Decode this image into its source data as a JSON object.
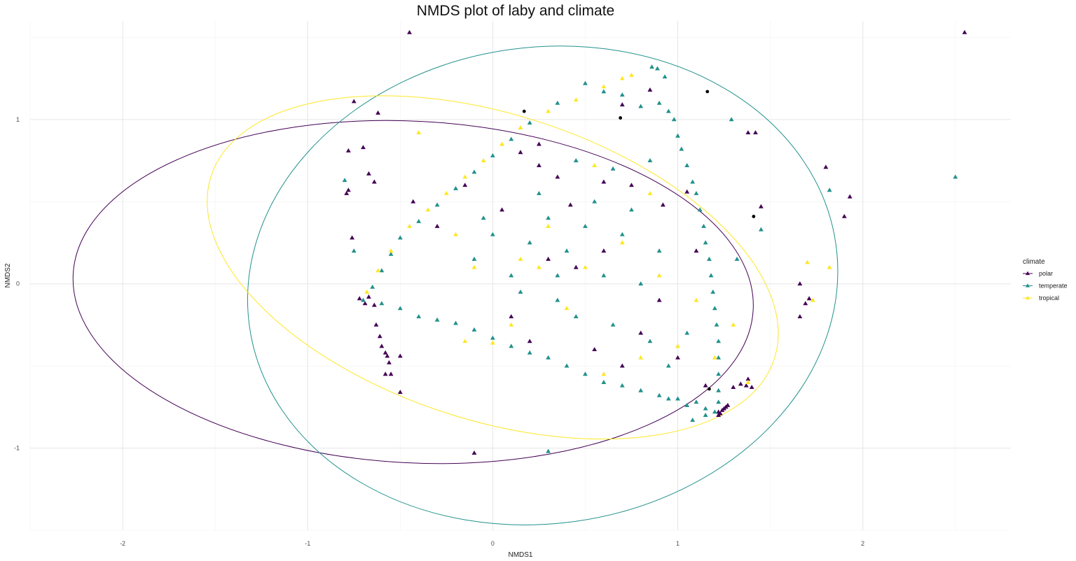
{
  "chart_data": {
    "type": "scatter",
    "title": "NMDS plot of laby and climate",
    "xlabel": "NMDS1",
    "ylabel": "NMDS2",
    "xlim": [
      -2.5,
      2.8
    ],
    "ylim": [
      -1.5,
      1.6
    ],
    "xticks": [
      "-2",
      "-1",
      "0",
      "1",
      "2"
    ],
    "yticks": [
      "-1",
      "0",
      "1"
    ],
    "xtick_values": [
      -2,
      -1,
      0,
      1,
      2
    ],
    "ytick_values": [
      -1,
      0,
      1
    ],
    "grid": true,
    "legend": {
      "title": "climate",
      "placement": "right"
    },
    "series": [
      {
        "name": "polar",
        "color": "#440154",
        "marker": "triangle",
        "points": [
          [
            -0.45,
            1.53
          ],
          [
            2.55,
            1.53
          ],
          [
            -0.75,
            1.11
          ],
          [
            -0.62,
            1.04
          ],
          [
            0.7,
            1.09
          ],
          [
            0.85,
            1.18
          ],
          [
            1.38,
            0.92
          ],
          [
            1.42,
            0.92
          ],
          [
            -0.78,
            0.81
          ],
          [
            -0.67,
            0.67
          ],
          [
            -0.64,
            0.62
          ],
          [
            -0.78,
            0.57
          ],
          [
            -0.79,
            0.55
          ],
          [
            -0.43,
            0.5
          ],
          [
            -0.7,
            0.83
          ],
          [
            1.8,
            0.71
          ],
          [
            1.93,
            0.53
          ],
          [
            1.9,
            0.41
          ],
          [
            1.45,
            0.47
          ],
          [
            -0.76,
            0.28
          ],
          [
            1.66,
            0.0
          ],
          [
            1.71,
            -0.09
          ],
          [
            1.69,
            -0.12
          ],
          [
            1.66,
            -0.2
          ],
          [
            -0.72,
            -0.09
          ],
          [
            -0.69,
            -0.12
          ],
          [
            -0.67,
            -0.08
          ],
          [
            -0.64,
            -0.13
          ],
          [
            -0.63,
            -0.25
          ],
          [
            -0.61,
            -0.32
          ],
          [
            -0.6,
            -0.38
          ],
          [
            -0.58,
            -0.42
          ],
          [
            -0.57,
            -0.44
          ],
          [
            -0.56,
            -0.48
          ],
          [
            -0.58,
            -0.55
          ],
          [
            -0.5,
            -0.44
          ],
          [
            -0.55,
            -0.55
          ],
          [
            -0.5,
            -0.66
          ],
          [
            -0.1,
            -1.03
          ],
          [
            1.22,
            -0.78
          ],
          [
            1.23,
            -0.79
          ],
          [
            1.24,
            -0.77
          ],
          [
            1.25,
            -0.76
          ],
          [
            1.26,
            -0.75
          ],
          [
            1.27,
            -0.74
          ],
          [
            1.22,
            -0.8
          ],
          [
            1.3,
            -0.63
          ],
          [
            1.34,
            -0.61
          ],
          [
            1.37,
            -0.62
          ],
          [
            1.38,
            -0.58
          ],
          [
            1.4,
            -0.63
          ],
          [
            0.15,
            0.8
          ],
          [
            0.25,
            0.72
          ],
          [
            0.35,
            0.65
          ],
          [
            0.42,
            0.48
          ],
          [
            0.6,
            0.62
          ],
          [
            0.75,
            0.6
          ],
          [
            0.92,
            0.48
          ],
          [
            1.05,
            0.56
          ],
          [
            0.45,
            0.1
          ],
          [
            0.3,
            0.15
          ],
          [
            0.1,
            -0.2
          ],
          [
            0.2,
            -0.35
          ],
          [
            0.55,
            -0.4
          ],
          [
            0.8,
            -0.3
          ],
          [
            0.9,
            -0.1
          ],
          [
            1.1,
            0.2
          ],
          [
            0.25,
            0.85
          ],
          [
            -0.15,
            0.6
          ],
          [
            -0.3,
            0.35
          ],
          [
            0.05,
            0.45
          ],
          [
            0.6,
            0.2
          ],
          [
            0.7,
            -0.5
          ],
          [
            1.0,
            -0.45
          ],
          [
            1.15,
            -0.62
          ]
        ]
      },
      {
        "name": "temperate",
        "color": "#21918c",
        "marker": "triangle",
        "points": [
          [
            0.86,
            1.32
          ],
          [
            0.89,
            1.31
          ],
          [
            0.93,
            1.26
          ],
          [
            0.5,
            1.22
          ],
          [
            0.6,
            1.17
          ],
          [
            0.7,
            1.15
          ],
          [
            0.8,
            1.08
          ],
          [
            0.9,
            1.1
          ],
          [
            0.95,
            1.05
          ],
          [
            0.35,
            1.1
          ],
          [
            0.2,
            0.98
          ],
          [
            0.1,
            0.88
          ],
          [
            0.0,
            0.78
          ],
          [
            -0.1,
            0.68
          ],
          [
            -0.2,
            0.58
          ],
          [
            -0.3,
            0.48
          ],
          [
            -0.4,
            0.38
          ],
          [
            -0.5,
            0.28
          ],
          [
            -0.55,
            0.18
          ],
          [
            -0.6,
            0.08
          ],
          [
            -0.65,
            -0.02
          ],
          [
            -0.7,
            -0.1
          ],
          [
            -0.6,
            -0.12
          ],
          [
            -0.5,
            -0.15
          ],
          [
            -0.4,
            -0.2
          ],
          [
            -0.3,
            -0.22
          ],
          [
            -0.2,
            -0.24
          ],
          [
            -0.1,
            -0.28
          ],
          [
            0.0,
            -0.33
          ],
          [
            0.1,
            -0.38
          ],
          [
            0.2,
            -0.42
          ],
          [
            0.3,
            -0.45
          ],
          [
            0.4,
            -0.5
          ],
          [
            0.5,
            -0.55
          ],
          [
            0.6,
            -0.6
          ],
          [
            0.7,
            -0.62
          ],
          [
            0.8,
            -0.65
          ],
          [
            0.9,
            -0.68
          ],
          [
            1.0,
            -0.7
          ],
          [
            1.1,
            -0.72
          ],
          [
            1.15,
            -0.76
          ],
          [
            1.2,
            -0.78
          ],
          [
            1.05,
            -0.74
          ],
          [
            0.95,
            -0.7
          ],
          [
            0.98,
            1.0
          ],
          [
            1.0,
            0.9
          ],
          [
            1.02,
            0.82
          ],
          [
            1.05,
            0.72
          ],
          [
            1.08,
            0.62
          ],
          [
            1.1,
            0.55
          ],
          [
            1.12,
            0.45
          ],
          [
            1.14,
            0.35
          ],
          [
            1.15,
            0.25
          ],
          [
            1.17,
            0.15
          ],
          [
            1.18,
            0.05
          ],
          [
            1.19,
            -0.05
          ],
          [
            1.2,
            -0.15
          ],
          [
            1.21,
            -0.25
          ],
          [
            1.22,
            -0.35
          ],
          [
            1.22,
            -0.45
          ],
          [
            1.22,
            -0.55
          ],
          [
            1.22,
            -0.65
          ],
          [
            1.22,
            -0.72
          ],
          [
            1.29,
            1.0
          ],
          [
            2.5,
            0.65
          ],
          [
            1.82,
            0.57
          ],
          [
            1.45,
            0.33
          ],
          [
            1.32,
            0.15
          ],
          [
            -0.8,
            0.63
          ],
          [
            -0.75,
            0.2
          ],
          [
            0.3,
            -1.02
          ],
          [
            1.08,
            -0.83
          ],
          [
            1.15,
            -0.8
          ],
          [
            0.3,
            0.4
          ],
          [
            0.5,
            0.35
          ],
          [
            0.7,
            0.3
          ],
          [
            0.2,
            0.25
          ],
          [
            0.4,
            0.2
          ],
          [
            0.6,
            0.05
          ],
          [
            0.8,
            0.0
          ],
          [
            0.1,
            0.05
          ],
          [
            -0.1,
            0.15
          ],
          [
            0.0,
            0.3
          ],
          [
            0.45,
            -0.2
          ],
          [
            0.65,
            -0.25
          ],
          [
            0.85,
            -0.35
          ],
          [
            0.35,
            -0.1
          ],
          [
            0.55,
            0.5
          ],
          [
            0.75,
            0.45
          ],
          [
            0.9,
            0.2
          ],
          [
            0.25,
            0.55
          ],
          [
            -0.05,
            0.4
          ],
          [
            0.15,
            -0.05
          ],
          [
            0.95,
            -0.5
          ],
          [
            1.05,
            -0.3
          ],
          [
            0.65,
            0.7
          ],
          [
            0.45,
            0.75
          ],
          [
            0.85,
            0.75
          ],
          [
            0.35,
            0.05
          ]
        ]
      },
      {
        "name": "tropical",
        "color": "#fde725",
        "marker": "triangle",
        "points": [
          [
            0.7,
            1.25
          ],
          [
            0.75,
            1.27
          ],
          [
            0.6,
            1.2
          ],
          [
            0.45,
            1.12
          ],
          [
            0.3,
            1.05
          ],
          [
            0.15,
            0.95
          ],
          [
            0.05,
            0.85
          ],
          [
            -0.05,
            0.75
          ],
          [
            -0.15,
            0.65
          ],
          [
            -0.25,
            0.55
          ],
          [
            -0.35,
            0.45
          ],
          [
            -0.45,
            0.35
          ],
          [
            -0.55,
            0.2
          ],
          [
            -0.62,
            0.08
          ],
          [
            -0.68,
            -0.05
          ],
          [
            -0.4,
            0.92
          ],
          [
            1.7,
            0.13
          ],
          [
            1.82,
            0.1
          ],
          [
            1.73,
            -0.1
          ],
          [
            0.55,
            0.72
          ],
          [
            0.3,
            0.35
          ],
          [
            0.5,
            0.1
          ],
          [
            0.1,
            -0.25
          ],
          [
            -0.15,
            -0.35
          ],
          [
            0.0,
            -0.36
          ],
          [
            0.6,
            -0.55
          ],
          [
            0.8,
            -0.45
          ],
          [
            1.0,
            -0.38
          ],
          [
            1.3,
            -0.25
          ],
          [
            1.38,
            -0.6
          ],
          [
            0.9,
            0.05
          ],
          [
            0.7,
            0.25
          ],
          [
            -0.2,
            0.3
          ],
          [
            0.15,
            0.15
          ],
          [
            0.4,
            -0.15
          ],
          [
            1.1,
            -0.1
          ],
          [
            0.85,
            0.55
          ],
          [
            0.25,
            0.1
          ],
          [
            1.2,
            -0.45
          ],
          [
            -0.1,
            0.1
          ]
        ]
      },
      {
        "name": "",
        "color": "#000000",
        "marker": "circle",
        "points": [
          [
            0.17,
            1.05
          ],
          [
            0.69,
            1.01
          ],
          [
            1.16,
            1.17
          ],
          [
            1.41,
            0.41
          ],
          [
            1.17,
            -0.64
          ]
        ]
      }
    ],
    "ellipses": [
      {
        "series": "polar",
        "color": "#440154",
        "cx": -0.43,
        "cy": -0.05,
        "rx": 1.84,
        "ry": 1.04,
        "rot": 3
      },
      {
        "series": "temperate",
        "color": "#21918c",
        "cx": 0.27,
        "cy": -0.01,
        "rx": 1.6,
        "ry": 1.45,
        "rot": -8
      },
      {
        "series": "tropical",
        "color": "#fde725",
        "cx": 0.0,
        "cy": 0.1,
        "rx": 1.6,
        "ry": 0.93,
        "rot": 18
      }
    ]
  }
}
